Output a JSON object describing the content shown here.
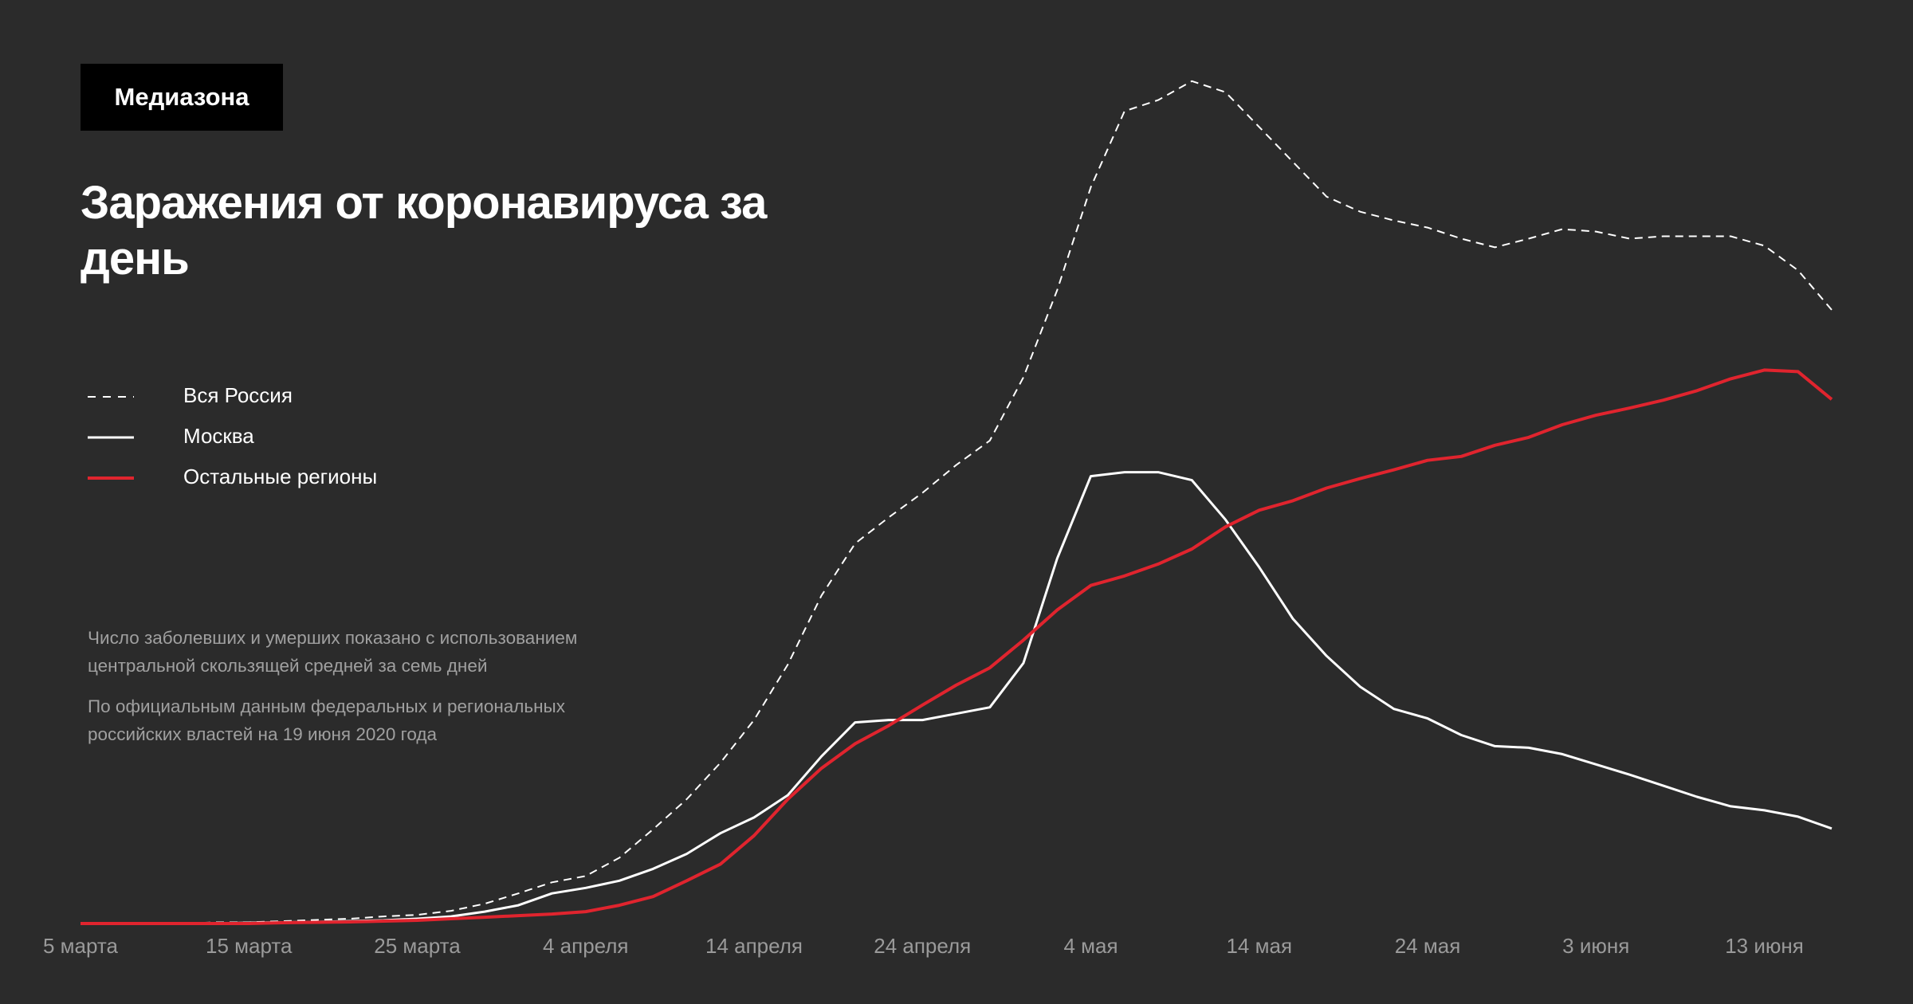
{
  "header": {
    "logo": "Медиазона"
  },
  "chart_data": {
    "type": "line",
    "title": "Заражения от коронавируса за день",
    "notes": [
      "Число заболевших и умерших показано с использованием центральной скользящей средней за семь дней",
      "По официальным данным федеральных и региональных российских властей на 19 июня 2020 года"
    ],
    "categories": [
      "5 марта",
      null,
      null,
      null,
      null,
      "15 марта",
      null,
      null,
      null,
      null,
      "25 марта",
      null,
      null,
      null,
      null,
      "4 апреля",
      null,
      null,
      null,
      null,
      "14 апреля",
      null,
      null,
      null,
      null,
      "24 апреля",
      null,
      null,
      null,
      null,
      "4 мая",
      null,
      null,
      null,
      null,
      "14 мая",
      null,
      null,
      null,
      null,
      "24 мая",
      null,
      null,
      null,
      null,
      "3 июня",
      null,
      null,
      null,
      null,
      "13 июня",
      null,
      null
    ],
    "ylim": [
      0,
      11000
    ],
    "series": [
      {
        "name": "Вся Россия",
        "color": "#ffffff",
        "linestyle": "dashed",
        "values": [
          0,
          0,
          0,
          0,
          15,
          15,
          30,
          45,
          60,
          90,
          110,
          160,
          250,
          380,
          520,
          600,
          830,
          1190,
          1570,
          2030,
          2570,
          3270,
          4140,
          4800,
          5130,
          5440,
          5790,
          6100,
          6900,
          8000,
          9300,
          10260,
          10400,
          10640,
          10500,
          10060,
          9620,
          9180,
          8990,
          8880,
          8790,
          8650,
          8540,
          8650,
          8770,
          8740,
          8650,
          8680,
          8680,
          8680,
          8560,
          8250,
          7750
        ]
      },
      {
        "name": "Москва",
        "color": "#ffffff",
        "linestyle": "solid",
        "values": [
          0,
          0,
          0,
          0,
          0,
          10,
          15,
          20,
          30,
          40,
          60,
          90,
          150,
          230,
          380,
          450,
          540,
          690,
          880,
          1140,
          1340,
          1620,
          2110,
          2540,
          2570,
          2570,
          2650,
          2730,
          3290,
          4610,
          5650,
          5700,
          5700,
          5600,
          5100,
          4500,
          3850,
          3380,
          2990,
          2710,
          2590,
          2380,
          2240,
          2220,
          2140,
          2010,
          1880,
          1740,
          1600,
          1480,
          1430,
          1350,
          1200
        ]
      },
      {
        "name": "Остальные регионы",
        "color": "#e0242e",
        "linestyle": "solid",
        "values": [
          0,
          0,
          0,
          0,
          0,
          0,
          10,
          15,
          20,
          30,
          40,
          60,
          80,
          100,
          120,
          150,
          230,
          340,
          540,
          750,
          1110,
          1570,
          1960,
          2270,
          2500,
          2760,
          3010,
          3230,
          3580,
          3960,
          4270,
          4390,
          4540,
          4730,
          5010,
          5220,
          5340,
          5500,
          5620,
          5730,
          5850,
          5900,
          6040,
          6140,
          6300,
          6420,
          6510,
          6610,
          6730,
          6880,
          6990,
          6970,
          6620
        ]
      }
    ]
  }
}
